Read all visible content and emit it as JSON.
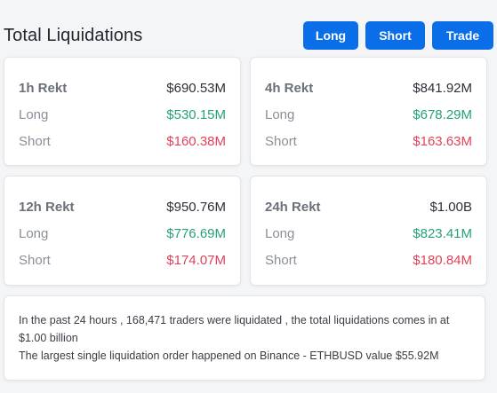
{
  "header": {
    "title": "Total Liquidations",
    "buttons": {
      "long": "Long",
      "short": "Short",
      "trade": "Trade"
    },
    "accent": "#0a6ee8"
  },
  "cards": [
    {
      "label": "1h Rekt",
      "total": "$690.53M",
      "long_label": "Long",
      "long": "$530.15M",
      "short_label": "Short",
      "short": "$160.38M"
    },
    {
      "label": "4h Rekt",
      "total": "$841.92M",
      "long_label": "Long",
      "long": "$678.29M",
      "short_label": "Short",
      "short": "$163.63M"
    },
    {
      "label": "12h Rekt",
      "total": "$950.76M",
      "long_label": "Long",
      "long": "$776.69M",
      "short_label": "Short",
      "short": "$174.07M"
    },
    {
      "label": "24h Rekt",
      "total": "$1.00B",
      "long_label": "Long",
      "long": "$823.41M",
      "short_label": "Short",
      "short": "$180.84M"
    }
  ],
  "colors": {
    "long": "#26a17b",
    "short": "#e0435a"
  },
  "summary": {
    "line1": "In the past 24 hours , 168,471 traders were liquidated , the total liquidations comes in at $1.00 billion",
    "line2": "The largest single liquidation order happened on Binance - ETHBUSD value $55.92M"
  }
}
